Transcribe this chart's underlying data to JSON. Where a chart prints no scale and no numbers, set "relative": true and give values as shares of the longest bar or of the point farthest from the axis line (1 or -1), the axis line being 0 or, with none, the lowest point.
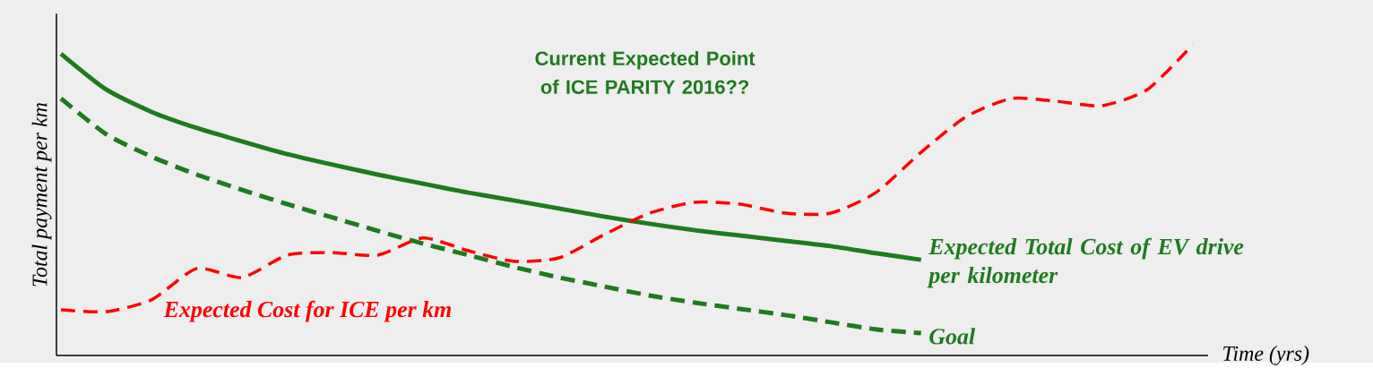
{
  "chart_data": {
    "type": "line",
    "relative": true,
    "xlabel": "Time (yrs)",
    "ylabel": "Total payment per  km",
    "annotations": [
      "Current Expected Point of ICE PARITY 2016??"
    ],
    "categories": [
      null,
      null,
      null,
      null,
      null,
      null,
      null,
      null,
      null,
      null,
      null,
      null,
      null,
      null,
      null,
      null,
      null,
      null,
      null,
      null,
      null,
      null,
      null,
      null,
      null,
      null
    ],
    "series": [
      {
        "name": "Expected Total Cost of EV drive per kilometer",
        "color": "#1f7a1f",
        "line_style": "solid",
        "values": [
          0.971,
          0.856,
          0.784,
          0.732,
          0.689,
          0.648,
          0.614,
          0.582,
          0.553,
          0.524,
          0.499,
          0.473,
          0.447,
          0.424,
          0.403,
          0.386,
          0.369,
          0.352,
          0.329,
          0.308,
          null,
          null,
          null,
          null,
          null,
          null
        ]
      },
      {
        "name": "Goal",
        "color": "#1f7a1f",
        "line_style": "dashed",
        "values": [
          0.827,
          0.712,
          0.64,
          0.582,
          0.533,
          0.487,
          0.444,
          0.401,
          0.36,
          0.323,
          0.285,
          0.251,
          0.222,
          0.193,
          0.17,
          0.15,
          0.13,
          0.107,
          0.084,
          0.072,
          null,
          null,
          null,
          null,
          null,
          null
        ]
      },
      {
        "name": "Expected Cost for ICE per km",
        "color": "#ff0000",
        "line_style": "dashed",
        "values": [
          0.147,
          0.141,
          0.179,
          0.28,
          0.251,
          0.323,
          0.331,
          0.323,
          0.378,
          0.337,
          0.303,
          0.314,
          0.389,
          0.458,
          0.493,
          0.487,
          0.458,
          0.458,
          0.524,
          0.654,
          0.769,
          0.827,
          0.818,
          0.804,
          0.856,
          1.0
        ]
      }
    ]
  }
}
